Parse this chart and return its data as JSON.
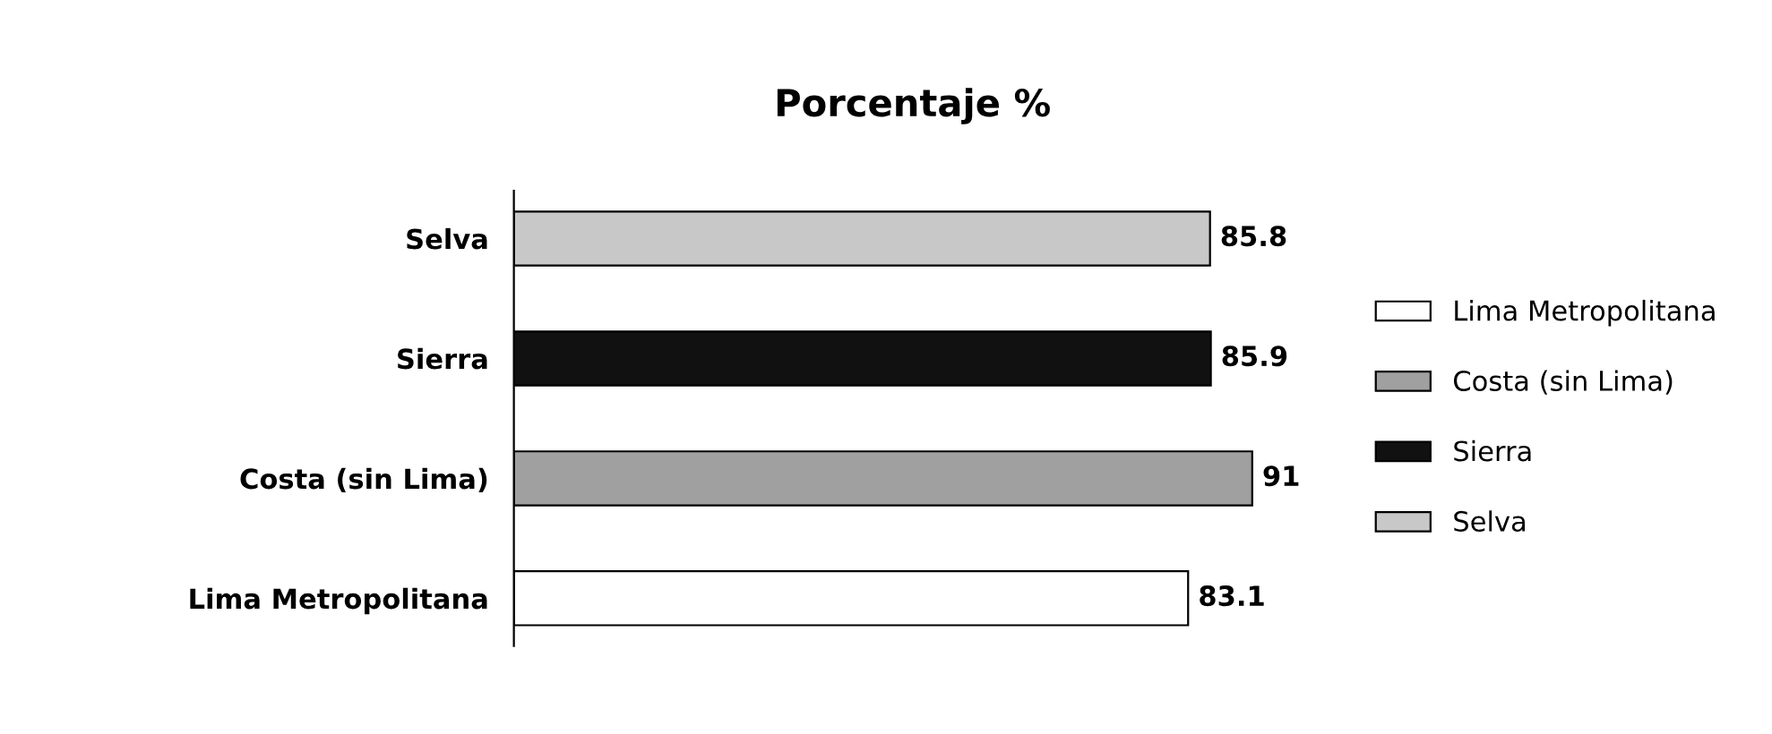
{
  "chart_data": {
    "type": "bar",
    "title": "Porcentaje %",
    "orientation": "horizontal",
    "stacked": true,
    "categories": [
      "Selva",
      "Sierra",
      "Costa (sin Lima)",
      "Lima Metropolitana"
    ],
    "series": [
      {
        "name": "Lima Metropolitana",
        "color": "#ffffff",
        "values": [
          null,
          null,
          null,
          83.1
        ]
      },
      {
        "name": "Costa (sin Lima)",
        "color": "#a0a0a0",
        "values": [
          null,
          null,
          91,
          null
        ]
      },
      {
        "name": "Sierra",
        "color": "#111111",
        "values": [
          null,
          85.9,
          null,
          null
        ]
      },
      {
        "name": "Selva",
        "color": "#c8c8c8",
        "values": [
          85.8,
          null,
          null,
          null
        ]
      }
    ],
    "data_labels": true,
    "legend": "right",
    "grid": false
  }
}
